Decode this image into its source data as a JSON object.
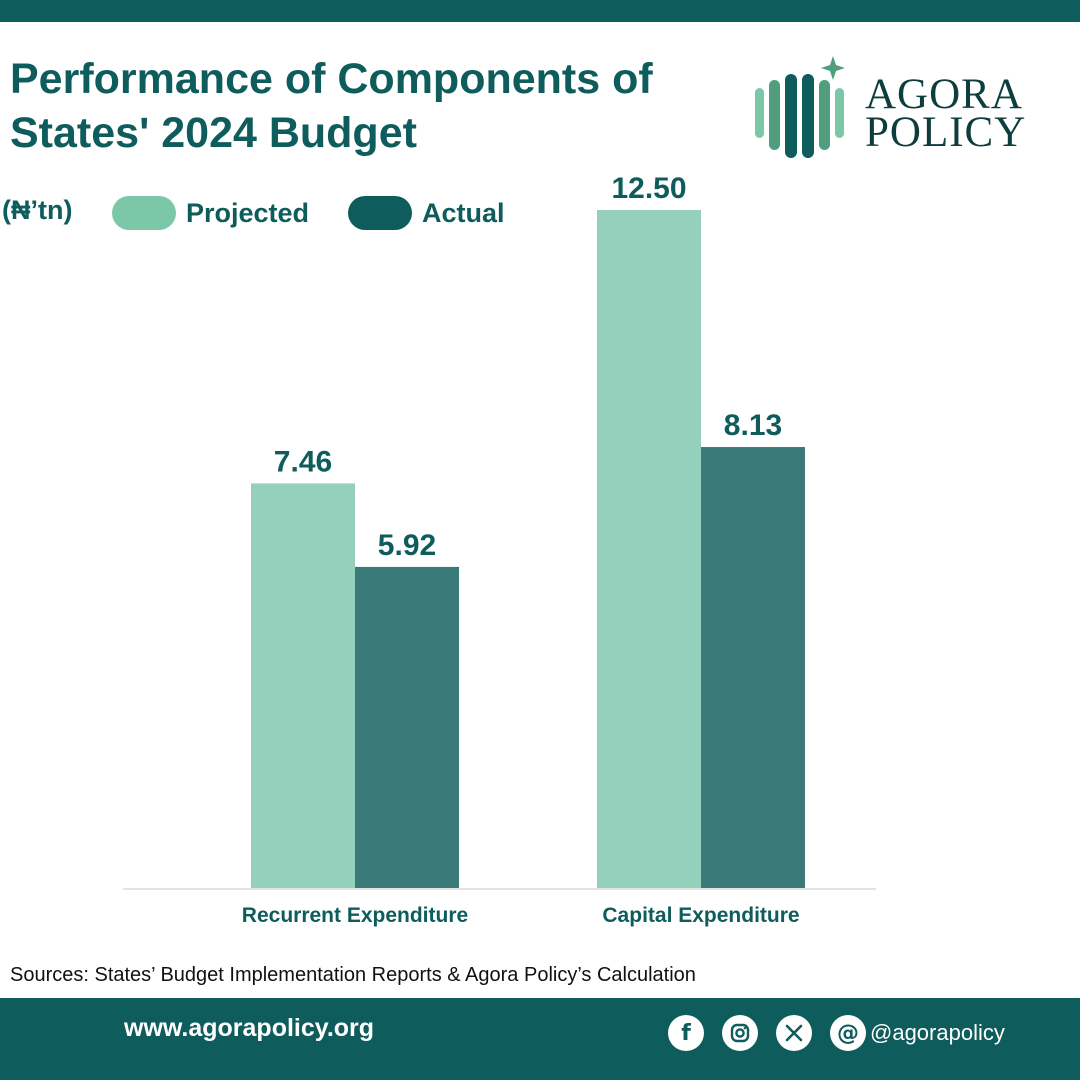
{
  "header": {
    "title": "Performance of Components of States' 2024 Budget",
    "logo_line1": "AGORA",
    "logo_line2": "POLICY"
  },
  "colors": {
    "brand": "#0e5c5c",
    "projected": "#94d0bb",
    "actual": "#3a7b79",
    "logo_light": "#7cc7a8",
    "logo_mid": "#4f9e7d"
  },
  "chart_data": {
    "type": "bar",
    "title": "Performance of Components of States' 2024 Budget",
    "unit_label": "(₦’tn)",
    "xlabel": "",
    "ylabel": "",
    "categories": [
      "Recurrent Expenditure",
      "Capital Expenditure"
    ],
    "series": [
      {
        "name": "Projected",
        "color": "#94d0bb",
        "values": [
          7.46,
          12.5
        ],
        "labels": [
          "7.46",
          "12.50"
        ]
      },
      {
        "name": "Actual",
        "color": "#3a7b79",
        "values": [
          5.92,
          8.13
        ],
        "labels": [
          "5.92",
          "8.13"
        ]
      }
    ],
    "ylim": [
      0,
      12.5
    ],
    "grid": false,
    "legend": "top-left"
  },
  "source": "Sources: States’ Budget Implementation Reports & Agora Policy’s Calculation",
  "footer": {
    "website": "www.agorapolicy.org",
    "handle": "@agorapolicy",
    "social_icons": [
      "facebook-icon",
      "instagram-icon",
      "x-icon",
      "threads-icon"
    ]
  }
}
